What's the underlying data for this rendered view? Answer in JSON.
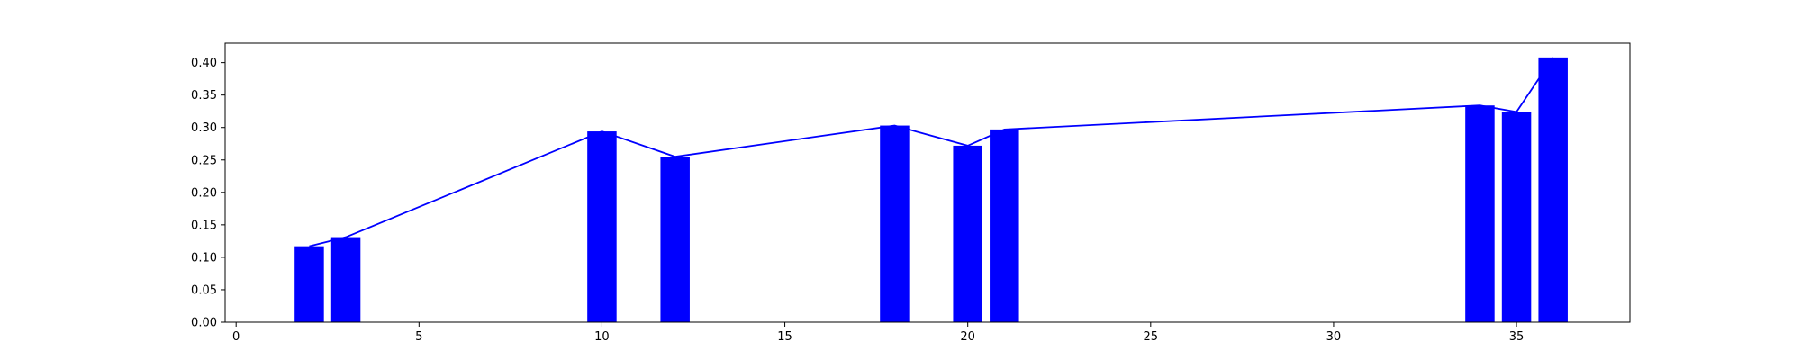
{
  "chart_data": {
    "type": "bar",
    "title": "",
    "xlabel": "",
    "ylabel": "",
    "xlim": [
      -0.3,
      38.1
    ],
    "ylim": [
      0.0,
      0.43
    ],
    "grid": false,
    "legend": "none",
    "bar_width": 0.8,
    "x_ticks": [
      0,
      5,
      10,
      15,
      20,
      25,
      30,
      35
    ],
    "y_ticks": [
      0.0,
      0.05,
      0.1,
      0.15,
      0.2,
      0.25,
      0.3,
      0.35,
      0.4
    ],
    "x_tick_labels": [
      "0",
      "5",
      "10",
      "15",
      "20",
      "25",
      "30",
      "35"
    ],
    "y_tick_labels": [
      "0.00",
      "0.05",
      "0.10",
      "0.15",
      "0.20",
      "0.25",
      "0.30",
      "0.35",
      "0.40"
    ],
    "x": [
      2,
      3,
      10,
      12,
      18,
      20,
      21,
      34,
      35,
      36
    ],
    "values": [
      0.117,
      0.131,
      0.294,
      0.255,
      0.303,
      0.272,
      0.297,
      0.334,
      0.324,
      0.408
    ],
    "overlay_line": true,
    "colors": {
      "bar": "#0000ff",
      "line": "#0000ff",
      "axis": "#000000",
      "background": "#ffffff"
    }
  }
}
